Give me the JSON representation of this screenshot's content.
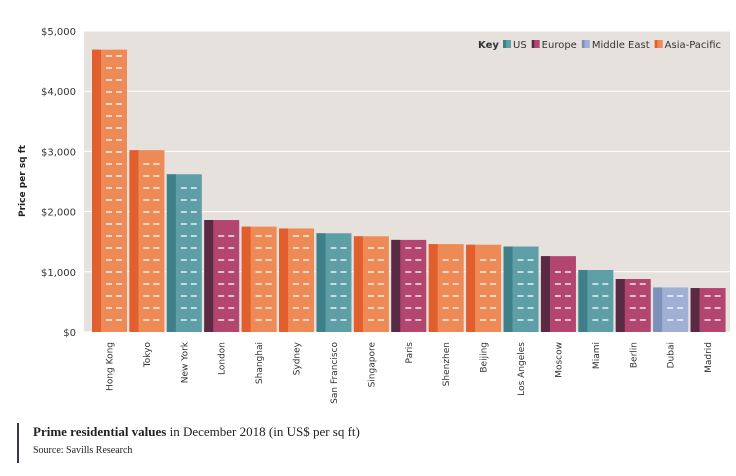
{
  "chart_data": {
    "type": "bar",
    "title": "Prime residential values in December 2018 (in US$ per sq ft)",
    "xlabel": "",
    "ylabel": "Price per sq ft",
    "ylim": [
      0,
      5000
    ],
    "yticks": [
      0,
      1000,
      2000,
      3000,
      4000,
      5000
    ],
    "ytick_labels": [
      "$0",
      "$1,000",
      "$2,000",
      "$3,000",
      "$4,000",
      "$5,000"
    ],
    "categories": [
      "Hong Kong",
      "Tokyo",
      "New York",
      "London",
      "Shanghai",
      "Sydney",
      "San Francisco",
      "Singapore",
      "Paris",
      "Shenzhen",
      "Beijing",
      "Los Angeles",
      "Moscow",
      "Miami",
      "Berlin",
      "Dubai",
      "Madrid"
    ],
    "values": [
      4690,
      3020,
      2620,
      1860,
      1750,
      1720,
      1640,
      1590,
      1530,
      1460,
      1450,
      1420,
      1260,
      1030,
      880,
      740,
      730
    ],
    "regions": [
      "Asia-Pacific",
      "Asia-Pacific",
      "US",
      "Europe",
      "Asia-Pacific",
      "Asia-Pacific",
      "US",
      "Asia-Pacific",
      "Europe",
      "Asia-Pacific",
      "Asia-Pacific",
      "US",
      "Europe",
      "US",
      "Europe",
      "Middle East",
      "Europe"
    ],
    "legend": {
      "key_label": "Key",
      "position": "top-right",
      "items": [
        {
          "name": "US",
          "color": "#5e9ea6",
          "dark": "#3f7f88"
        },
        {
          "name": "Europe",
          "color": "#b3466e",
          "dark": "#5a2a45"
        },
        {
          "name": "Middle East",
          "color": "#9fb0d4",
          "dark": "#7d90ba"
        },
        {
          "name": "Asia-Pacific",
          "color": "#ee8a55",
          "dark": "#e05f2c"
        }
      ]
    }
  },
  "caption": {
    "title_bold": "Prime residential values",
    "title_rest": " in December 2018 (in US$ per sq ft)",
    "source": "Source: Savills Research"
  }
}
